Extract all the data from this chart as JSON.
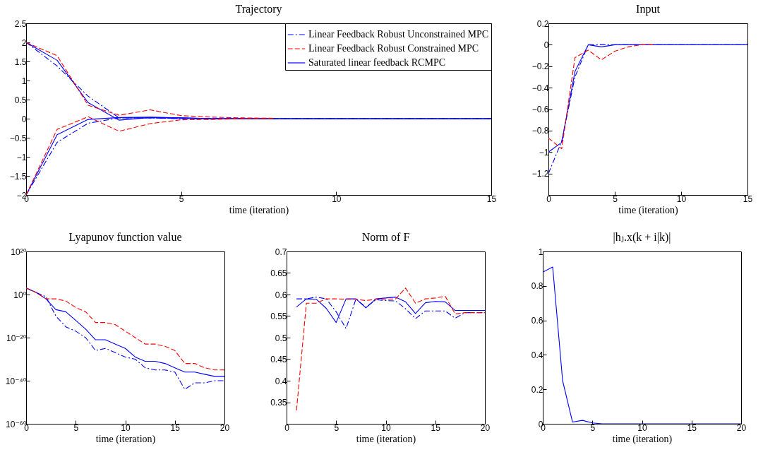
{
  "chart_data": [
    {
      "type": "line",
      "title": "Trajectory",
      "xlabel": "time (iteration)",
      "x": [
        0,
        1,
        2,
        3,
        4,
        5,
        6,
        7,
        8,
        9,
        10,
        11,
        12,
        13,
        14,
        15
      ],
      "xlim": [
        0,
        15
      ],
      "xticks": [
        0,
        5,
        10,
        15
      ],
      "ylim": [
        -2,
        2.5
      ],
      "yticks": [
        -2,
        -1.5,
        -1,
        -0.5,
        0,
        0.5,
        1,
        1.5,
        2,
        2.5
      ],
      "legend": "top right",
      "series": [
        {
          "name": "Linear Feedback Robust Unconstrained MPC",
          "color": "#0000ff",
          "line_style": "dotted",
          "values": [
            2,
            1.38,
            0.59,
            0.02,
            0.02,
            0,
            0,
            0,
            0,
            0,
            0,
            0,
            0,
            0,
            0,
            0
          ]
        },
        {
          "name": "Linear Feedback Robust Constrained MPC",
          "color": "#ff0000",
          "line_style": "dashed",
          "values": [
            2,
            1.65,
            0.35,
            0.09,
            0.23,
            0.08,
            0.04,
            0.02,
            0.01,
            null,
            null,
            null,
            null,
            null,
            null,
            null
          ]
        },
        {
          "name": "Saturated linear feedback RCMPC",
          "color": "#0000ff",
          "line_style": "solid",
          "values": [
            2,
            1.53,
            0.42,
            -0.04,
            0.03,
            0.02,
            0,
            0,
            0,
            0,
            0,
            0,
            0,
            0,
            0,
            0
          ]
        },
        {
          "color": "#0000ff",
          "line_style": "dotted",
          "values": [
            -2,
            -0.62,
            -0.12,
            0.02,
            0.02,
            0,
            0,
            0,
            0,
            0,
            0,
            0,
            0,
            0,
            0,
            0
          ]
        },
        {
          "color": "#ff0000",
          "line_style": "dashed",
          "values": [
            -2,
            -0.28,
            0.05,
            -0.33,
            -0.13,
            -0.03,
            -0.02,
            0,
            0,
            null,
            null,
            null,
            null,
            null,
            null,
            null
          ]
        },
        {
          "color": "#0000ff",
          "line_style": "solid",
          "values": [
            -2,
            -0.42,
            -0.02,
            0.03,
            0.04,
            0.02,
            0,
            0,
            0,
            0,
            0,
            0,
            0,
            0,
            0,
            0
          ]
        }
      ]
    },
    {
      "type": "line",
      "title": "Input",
      "xlabel": "time (iteration)",
      "x": [
        0,
        1,
        2,
        3,
        4,
        5,
        6,
        7,
        8,
        9,
        10,
        11,
        12,
        13,
        14,
        15
      ],
      "xlim": [
        0,
        15
      ],
      "xticks": [
        0,
        5,
        10,
        15
      ],
      "ylim": [
        -1.4,
        0.2
      ],
      "yticks": [
        -1.2,
        -1,
        -0.8,
        -0.6,
        -0.4,
        -0.2,
        0,
        0.2
      ],
      "series": [
        {
          "color": "#0000ff",
          "line_style": "dotted",
          "values": [
            -1.2,
            -0.9,
            -0.3,
            0,
            0,
            0,
            0,
            0,
            0,
            0,
            0,
            0,
            0,
            0,
            0,
            0
          ]
        },
        {
          "color": "#ff0000",
          "line_style": "dashed",
          "values": [
            -0.87,
            -0.97,
            -0.12,
            -0.05,
            -0.14,
            -0.06,
            -0.02,
            0,
            0,
            null,
            null,
            null,
            null,
            null,
            null,
            null
          ]
        },
        {
          "color": "#0000ff",
          "line_style": "solid",
          "values": [
            -1,
            -0.91,
            -0.25,
            0,
            -0.02,
            0,
            0,
            0,
            0,
            0,
            0,
            0,
            0,
            0,
            0,
            0
          ]
        }
      ]
    },
    {
      "type": "line",
      "title": "Lyapunov function value",
      "xlabel": "time (iteration)",
      "x": [
        0,
        1,
        2,
        3,
        4,
        5,
        6,
        7,
        8,
        9,
        10,
        11,
        12,
        13,
        14,
        15,
        16,
        17,
        18,
        19,
        20
      ],
      "xlim": [
        0,
        20
      ],
      "xticks": [
        0,
        5,
        10,
        15,
        20
      ],
      "log": true,
      "ylim": [
        1e-60,
        1e+20
      ],
      "yticks": [
        {
          "value": 1e-60,
          "label": "10⁻⁶⁰"
        },
        {
          "value": 1e-40,
          "label": "10⁻⁴⁰"
        },
        {
          "value": 1e-20,
          "label": "10⁻²⁰"
        },
        {
          "value": 1,
          "label": "10⁰"
        },
        {
          "value": 1e+20,
          "label": "10²⁰"
        }
      ],
      "series": [
        {
          "color": "#0000ff",
          "line_style": "dotted",
          "values": [
            1000.0,
            10.0,
            0.1,
            1e-10,
            1e-15,
            1e-17,
            1e-20,
            1e-26,
            1e-25,
            1e-27,
            1e-29,
            1e-30,
            1e-34,
            1e-35,
            1e-35,
            1e-36,
            1e-44,
            1e-41,
            1e-41,
            1e-40,
            1e-40
          ]
        },
        {
          "color": "#ff0000",
          "line_style": "dashed",
          "values": [
            1000.0,
            10.0,
            0.01,
            0.01,
            0.001,
            1e-06,
            1e-08,
            1e-13,
            1e-13,
            1e-14,
            1e-17,
            1e-20,
            1e-23,
            1e-23,
            1e-24,
            1e-26,
            1e-32,
            1e-32,
            1e-34,
            1e-35,
            1e-35
          ]
        },
        {
          "color": "#0000ff",
          "line_style": "solid",
          "values": [
            1000.0,
            10.0,
            0.01,
            1e-07,
            1e-08,
            1e-12,
            1e-16,
            1e-21,
            1e-21,
            1e-23,
            1e-25,
            1e-29,
            1e-31,
            1e-31,
            1e-32,
            1e-34,
            1e-36,
            1e-36,
            1e-37,
            1e-38,
            1e-38
          ]
        }
      ]
    },
    {
      "type": "line",
      "title": "Norm of F",
      "xlabel": "time (iteration)",
      "x": [
        1,
        2,
        3,
        4,
        5,
        6,
        7,
        8,
        9,
        10,
        11,
        12,
        13,
        14,
        15,
        16,
        17,
        18,
        19,
        20
      ],
      "xlim": [
        0,
        20
      ],
      "xticks": [
        0,
        5,
        10,
        15,
        20
      ],
      "ylim": [
        0.3,
        0.7
      ],
      "yticks": [
        0.35,
        0.4,
        0.45,
        0.5,
        0.55,
        0.6,
        0.65,
        0.7
      ],
      "series": [
        {
          "color": "#0000ff",
          "line_style": "dotted",
          "values": [
            0.59,
            0.59,
            0.594,
            0.59,
            0.56,
            0.521,
            0.59,
            0.57,
            0.588,
            0.586,
            0.585,
            0.567,
            0.544,
            0.562,
            0.562,
            0.562,
            0.545,
            0.558,
            0.558,
            0.558
          ]
        },
        {
          "color": "#ff0000",
          "line_style": "dashed",
          "values": [
            0.331,
            0.58,
            0.58,
            0.59,
            0.59,
            0.589,
            0.589,
            0.586,
            0.589,
            0.589,
            0.59,
            0.615,
            0.58,
            0.59,
            0.592,
            0.596,
            0.555,
            0.558,
            0.558,
            0.558
          ]
        },
        {
          "color": "#0000ff",
          "line_style": "solid",
          "values": [
            0.571,
            0.59,
            0.589,
            0.568,
            0.535,
            0.59,
            0.59,
            0.569,
            0.59,
            0.592,
            0.594,
            0.583,
            0.556,
            0.581,
            0.584,
            0.583,
            0.563,
            0.563,
            0.563,
            0.563
          ]
        }
      ]
    },
    {
      "type": "line",
      "title": "|hⱼ.x(k + i|k)|",
      "xlabel": "time (iteration)",
      "x": [
        0,
        1,
        2,
        3,
        4,
        5,
        6,
        7,
        8,
        9,
        10,
        11,
        12,
        13,
        14,
        15,
        16,
        17,
        18,
        19,
        20
      ],
      "xlim": [
        0,
        20
      ],
      "xticks": [
        0,
        5,
        10,
        15,
        20
      ],
      "ylim": [
        0,
        1
      ],
      "yticks": [
        0,
        0.2,
        0.4,
        0.6,
        0.8,
        1
      ],
      "series": [
        {
          "color": "#0000ff",
          "line_style": "solid",
          "values": [
            0.88,
            0.91,
            0.25,
            0.01,
            0.02,
            0.005,
            0,
            0,
            0,
            0,
            0,
            0,
            0,
            0,
            0,
            0,
            0,
            0,
            0,
            0,
            0
          ]
        }
      ]
    }
  ]
}
